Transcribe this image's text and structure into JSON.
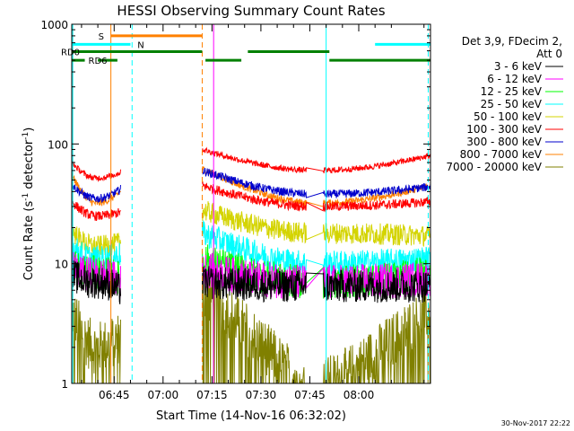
{
  "chart_data": {
    "type": "line",
    "title": "HESSI Observing Summary Count Rates",
    "xlabel": "Start Time (14-Nov-16 06:32:02)",
    "ylabel_main": "Count Rate (s",
    "ylabel_sup1": "-1",
    "ylabel_mid": " detector",
    "ylabel_sup2": "-1",
    "ylabel_end": ")",
    "yscale": "log",
    "ylim": [
      1,
      1000
    ],
    "xlim_min": [
      32,
      142
    ],
    "x_ticks": [
      {
        "min": 45,
        "label": "06:45"
      },
      {
        "min": 60,
        "label": "07:00"
      },
      {
        "min": 75,
        "label": "07:15"
      },
      {
        "min": 90,
        "label": "07:30"
      },
      {
        "min": 105,
        "label": "07:45"
      },
      {
        "min": 120,
        "label": "08:00"
      }
    ],
    "y_ticks": [
      {
        "value": 1,
        "label": "1"
      },
      {
        "value": 10,
        "label": "10"
      },
      {
        "value": 100,
        "label": "100"
      },
      {
        "value": 1000,
        "label": "1000"
      }
    ],
    "legend": {
      "header_line1": "Det 3,9, FDecim 2,",
      "header_line2": "Att 0",
      "placement": "right"
    },
    "series": [
      {
        "name": "3 - 6 keV",
        "color": "#000000",
        "seg1": [
          8,
          7,
          6
        ],
        "seg2": [
          7,
          6.5,
          6.5
        ]
      },
      {
        "name": "6 - 12 keV",
        "color": "#ff00ff",
        "seg1": [
          9,
          8,
          7
        ],
        "seg2": [
          9,
          7,
          7.5
        ]
      },
      {
        "name": "12 - 25 keV",
        "color": "#00ff00",
        "seg1": [
          10,
          8.5,
          7.5
        ],
        "seg2": [
          11,
          7,
          8.5
        ]
      },
      {
        "name": "25 - 50 keV",
        "color": "#00ffff",
        "seg1": [
          14,
          11,
          12
        ],
        "seg2": [
          18,
          10,
          11
        ]
      },
      {
        "name": "50 - 100 keV",
        "color": "#d4d400",
        "seg1": [
          19,
          14,
          15
        ],
        "seg2": [
          28,
          18,
          17
        ]
      },
      {
        "name": "100 - 300 keV",
        "color": "#ff0000",
        "seg1": [
          33,
          25,
          27
        ],
        "seg2": [
          45,
          30,
          33
        ]
      },
      {
        "name": "300 - 800 keV",
        "color": "#0000cc",
        "seg1": [
          46,
          35,
          42
        ],
        "seg2": [
          60,
          38,
          44
        ]
      },
      {
        "name": "800 - 7000 keV",
        "color": "#ff8000",
        "seg1": [
          55,
          32,
          40
        ],
        "seg2": [
          62,
          32,
          45
        ]
      },
      {
        "name": "7000 - 20000 keV",
        "color": "#808000",
        "seg1": [
          4,
          2,
          2.5
        ],
        "seg2": [
          6,
          1,
          4
        ]
      }
    ],
    "red_step_series": {
      "seg1": [
        70,
        52,
        58
      ],
      "seg2_pre": [
        68,
        55
      ],
      "seg2": [
        90,
        60,
        80
      ]
    },
    "gaps_min": [
      [
        47,
        72
      ],
      [
        104,
        109
      ]
    ],
    "flags": [
      {
        "label": "S",
        "color": "#ff8000",
        "value": 800,
        "start_min": 44,
        "end_min": 72
      },
      {
        "label": "N",
        "color": "#00ffff",
        "value": 680,
        "start_min": 32,
        "end_min": 50
      },
      {
        "label": "",
        "color": "#00ffff",
        "value": 680,
        "start_min": 125,
        "end_min": 142
      },
      {
        "label": "RD0",
        "color": "#008000",
        "value": 590,
        "start_min": 32,
        "end_min": 72
      },
      {
        "label": "",
        "color": "#008000",
        "value": 590,
        "start_min": 86,
        "end_min": 111
      },
      {
        "label": "RD6",
        "color": "#008000",
        "value": 500,
        "start_min": 32,
        "end_min": 36
      },
      {
        "label": "",
        "color": "#008000",
        "value": 500,
        "start_min": 40,
        "end_min": 46
      },
      {
        "label": "",
        "color": "#008000",
        "value": 500,
        "start_min": 73,
        "end_min": 84
      },
      {
        "label": "",
        "color": "#008000",
        "value": 500,
        "start_min": 111,
        "end_min": 142
      }
    ],
    "vlines": [
      {
        "min": 32.3,
        "color": "#00ffff",
        "style": "solid"
      },
      {
        "min": 44,
        "color": "#ff8000",
        "style": "solid"
      },
      {
        "min": 50.5,
        "color": "#00ffff",
        "style": "dashed"
      },
      {
        "min": 72,
        "color": "#ff8000",
        "style": "dashed"
      },
      {
        "min": 75.5,
        "color": "#ff00ff",
        "style": "solid"
      },
      {
        "min": 110,
        "color": "#00ffff",
        "style": "solid"
      },
      {
        "min": 141.3,
        "color": "#00ffff",
        "style": "dashed"
      }
    ],
    "footer_date": "30-Nov-2017 22:22",
    "grid": false
  }
}
